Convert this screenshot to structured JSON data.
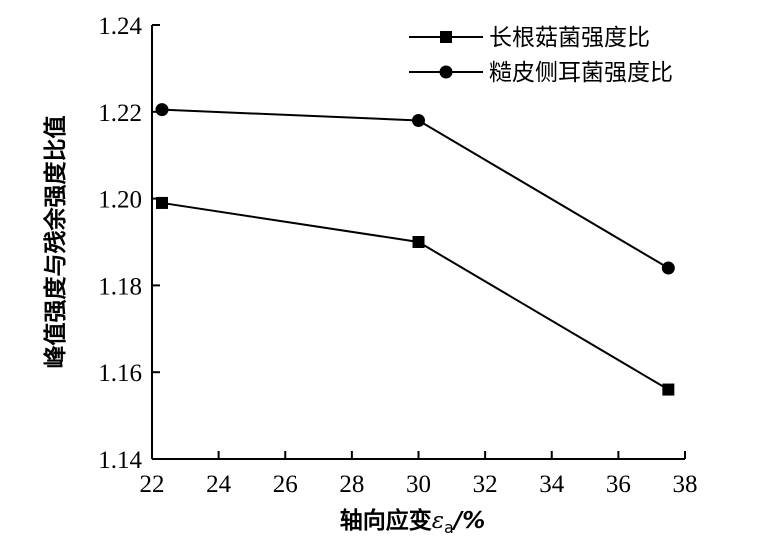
{
  "chart_data": {
    "type": "line",
    "xlabel": "轴向应变",
    "xlabel_symbol": "ε",
    "xlabel_subscript": "a",
    "xlabel_unit": "/%",
    "ylabel": "峰值强度与残余强度比值",
    "xlim": [
      22,
      38
    ],
    "ylim": [
      1.14,
      1.24
    ],
    "xticks": [
      "22",
      "24",
      "26",
      "28",
      "30",
      "32",
      "34",
      "36",
      "38"
    ],
    "yticks": [
      "1.14",
      "1.16",
      "1.18",
      "1.20",
      "1.22",
      "1.24"
    ],
    "legend_position": "top-right",
    "series": [
      {
        "name": "长根菇菌强度比",
        "marker": "square",
        "x": [
          22.3,
          30.0,
          37.5
        ],
        "y": [
          1.199,
          1.19,
          1.156
        ]
      },
      {
        "name": "糙皮侧耳菌强度比",
        "marker": "circle",
        "x": [
          22.3,
          30.0,
          37.5
        ],
        "y": [
          1.2205,
          1.218,
          1.184
        ]
      }
    ]
  }
}
